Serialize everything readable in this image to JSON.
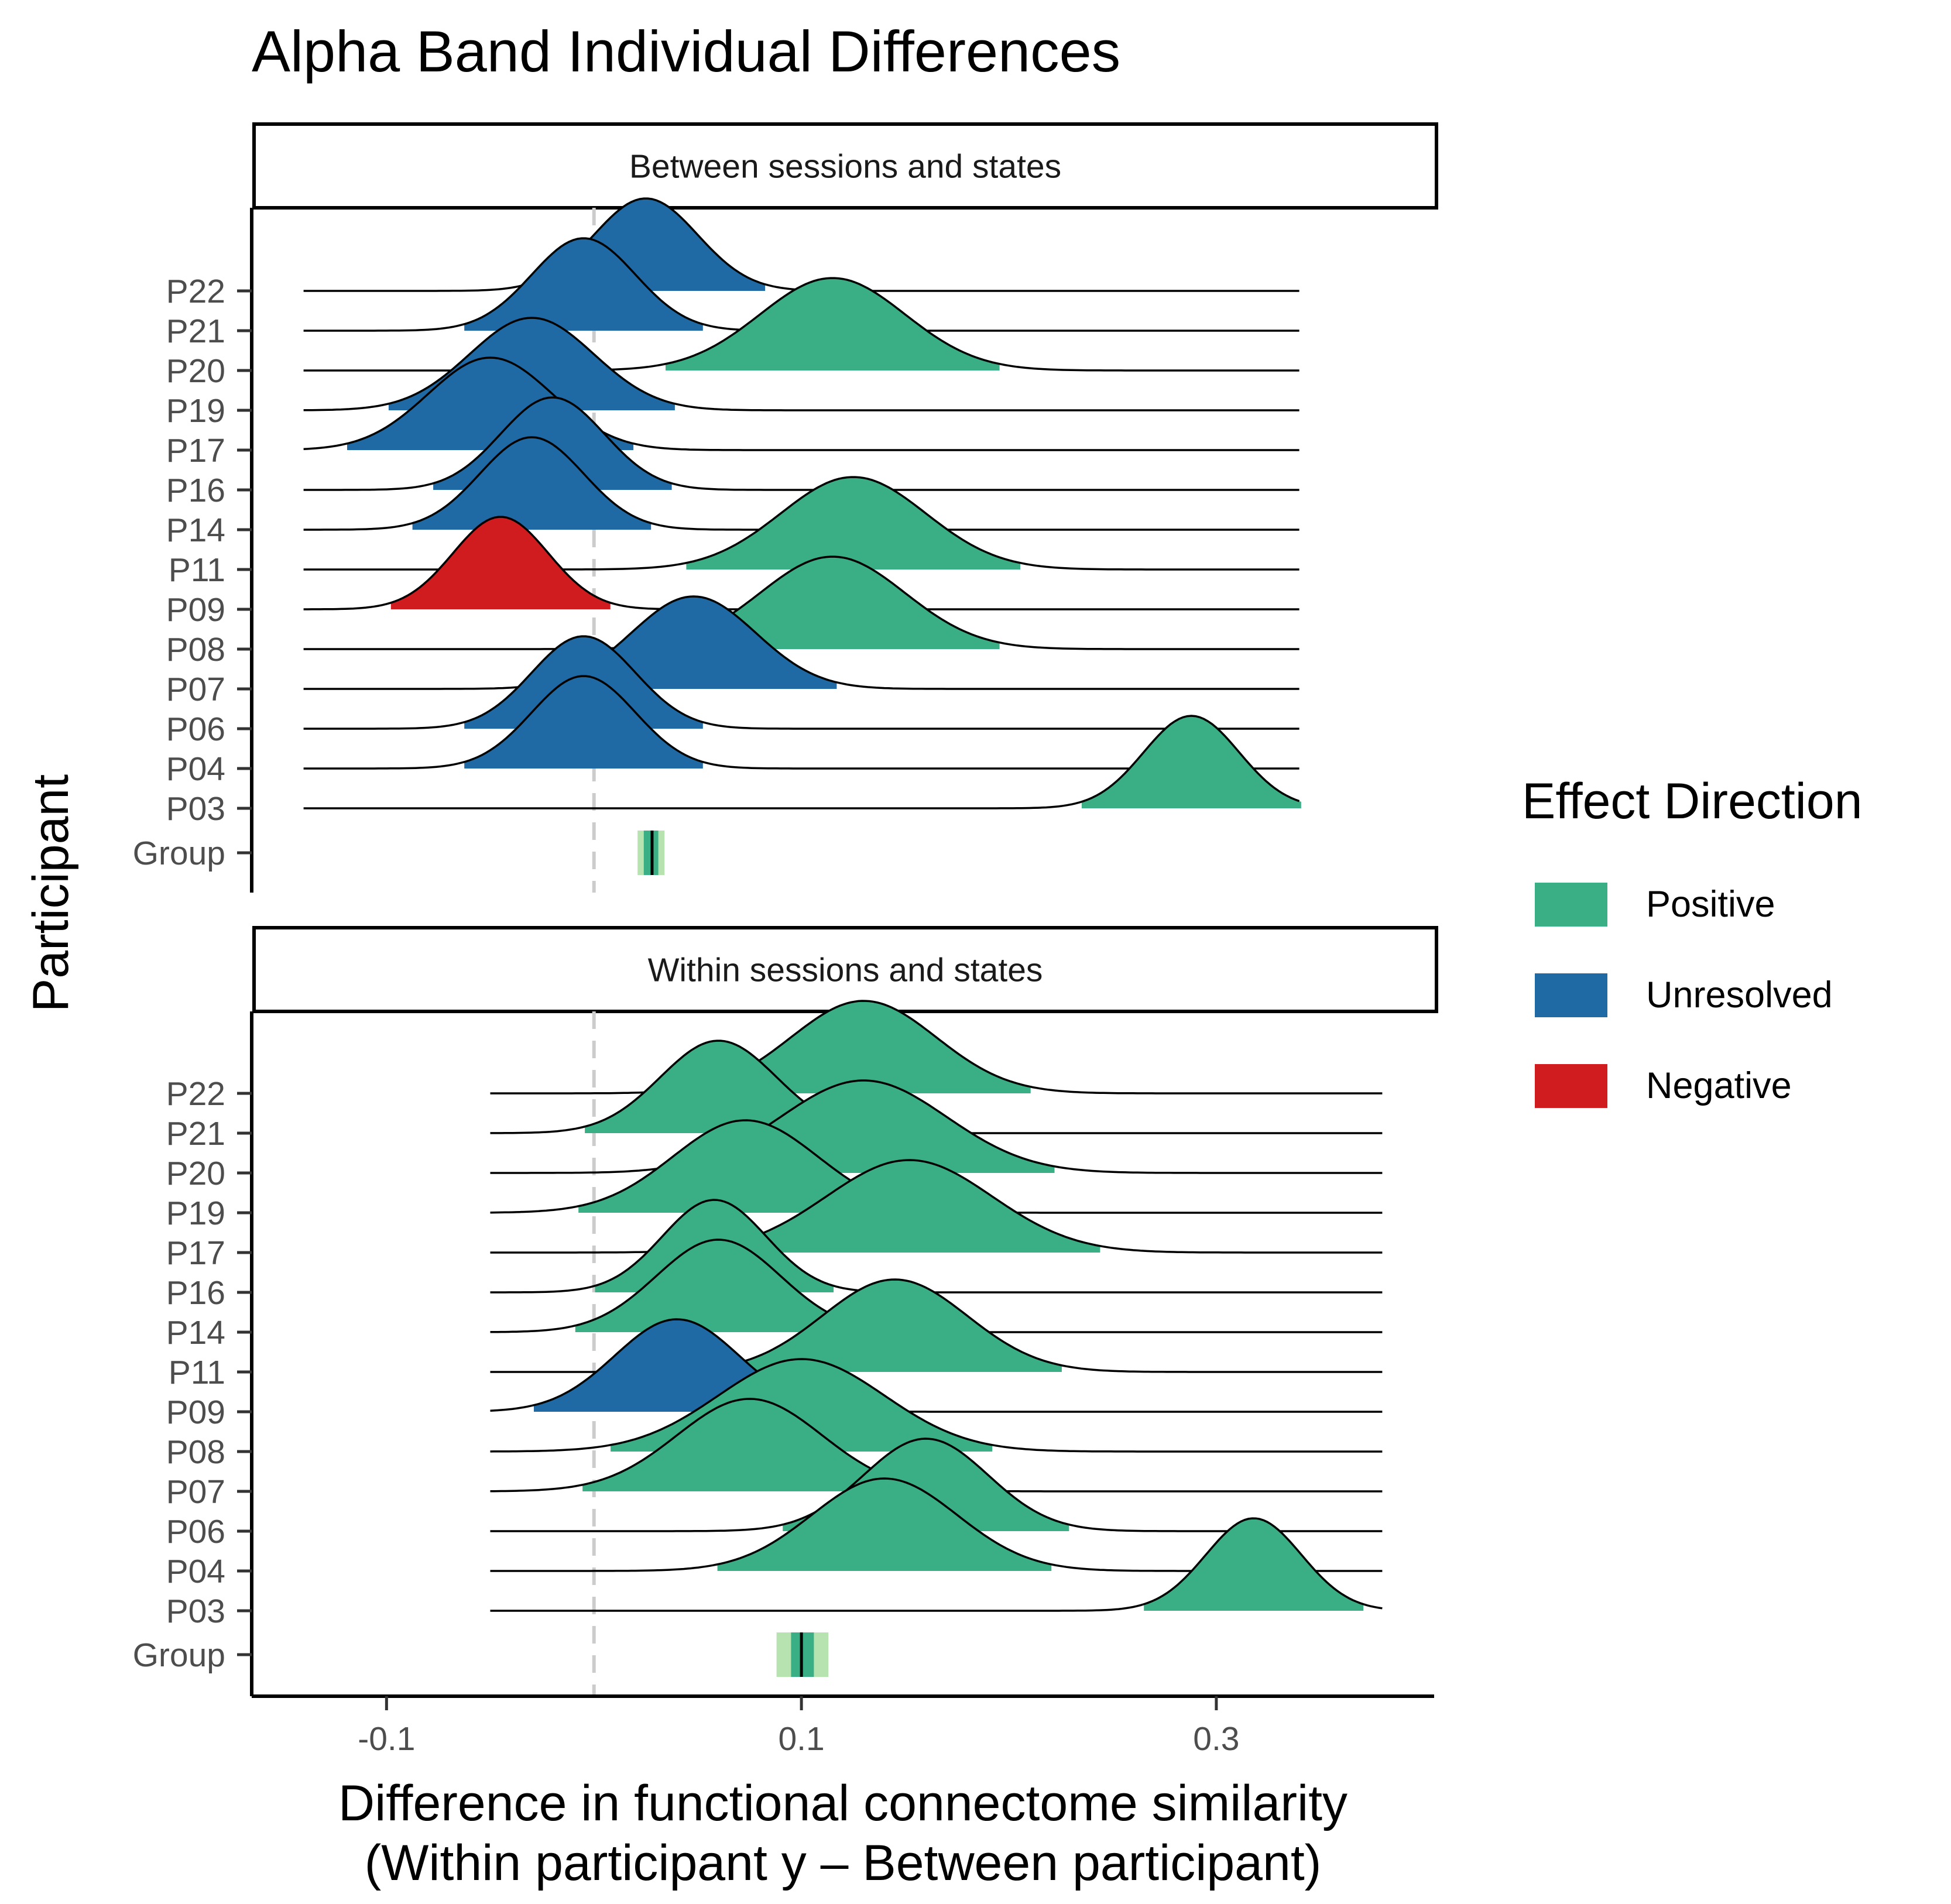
{
  "chart_data": {
    "type": "ridgeline",
    "title": "Alpha Band Individual Differences",
    "xlabel_line1": "Difference in functional connectome similarity",
    "xlabel_line2": "(Within participant y – Between participant)",
    "ylabel": "Participant",
    "x_ticks": [
      -0.1,
      0.1,
      0.3
    ],
    "x_tick_labels": [
      "-0.1",
      "0.1",
      "0.3"
    ],
    "xlim": [
      -0.165,
      0.405
    ],
    "reference_line": 0,
    "participants": [
      "P03",
      "P04",
      "P06",
      "P07",
      "P08",
      "P09",
      "P11",
      "P14",
      "P16",
      "P17",
      "P19",
      "P20",
      "P21",
      "P22"
    ],
    "group_label": "Group",
    "legend": {
      "title": "Effect Direction",
      "items": [
        {
          "key": "Positive",
          "label": "Positive",
          "color": "#3aaf85"
        },
        {
          "key": "Unresolved",
          "label": "Unresolved",
          "color": "#1f6aa5"
        },
        {
          "key": "Negative",
          "label": "Negative",
          "color": "#d01c1f"
        }
      ]
    },
    "group_interval_colors": {
      "outer": "#b7e3b1",
      "inner": "#3aaf85",
      "median": "#000000"
    },
    "panels": [
      {
        "strip": "Between sessions and states",
        "x_range": [
          -0.14,
          0.34
        ],
        "densities": [
          {
            "participant": "P03",
            "mean": 0.288,
            "sd": 0.023,
            "direction": "Positive"
          },
          {
            "participant": "P04",
            "mean": -0.005,
            "sd": 0.025,
            "direction": "Unresolved"
          },
          {
            "participant": "P06",
            "mean": -0.005,
            "sd": 0.025,
            "direction": "Unresolved"
          },
          {
            "participant": "P07",
            "mean": 0.048,
            "sd": 0.03,
            "direction": "Unresolved"
          },
          {
            "participant": "P08",
            "mean": 0.115,
            "sd": 0.035,
            "direction": "Positive"
          },
          {
            "participant": "P09",
            "mean": -0.045,
            "sd": 0.023,
            "direction": "Negative"
          },
          {
            "participant": "P11",
            "mean": 0.125,
            "sd": 0.035,
            "direction": "Positive"
          },
          {
            "participant": "P14",
            "mean": -0.03,
            "sd": 0.025,
            "direction": "Unresolved"
          },
          {
            "participant": "P16",
            "mean": -0.02,
            "sd": 0.025,
            "direction": "Unresolved"
          },
          {
            "participant": "P17",
            "mean": -0.05,
            "sd": 0.03,
            "direction": "Unresolved"
          },
          {
            "participant": "P19",
            "mean": -0.03,
            "sd": 0.03,
            "direction": "Unresolved"
          },
          {
            "participant": "P20",
            "mean": 0.115,
            "sd": 0.035,
            "direction": "Positive"
          },
          {
            "participant": "P21",
            "mean": -0.005,
            "sd": 0.025,
            "direction": "Unresolved"
          },
          {
            "participant": "P22",
            "mean": 0.025,
            "sd": 0.025,
            "direction": "Unresolved"
          }
        ],
        "group": {
          "outer": [
            0.021,
            0.034
          ],
          "inner": [
            0.024,
            0.031
          ],
          "median": 0.028
        }
      },
      {
        "strip": "Within sessions and states",
        "x_range": [
          -0.05,
          0.38
        ],
        "densities": [
          {
            "participant": "P03",
            "mean": 0.318,
            "sd": 0.023,
            "direction": "Positive"
          },
          {
            "participant": "P04",
            "mean": 0.14,
            "sd": 0.035,
            "direction": "Positive"
          },
          {
            "participant": "P06",
            "mean": 0.16,
            "sd": 0.03,
            "direction": "Positive"
          },
          {
            "participant": "P07",
            "mean": 0.075,
            "sd": 0.035,
            "direction": "Positive"
          },
          {
            "participant": "P08",
            "mean": 0.1,
            "sd": 0.04,
            "direction": "Positive"
          },
          {
            "participant": "P09",
            "mean": 0.04,
            "sd": 0.03,
            "direction": "Unresolved"
          },
          {
            "participant": "P11",
            "mean": 0.145,
            "sd": 0.035,
            "direction": "Positive"
          },
          {
            "participant": "P14",
            "mean": 0.06,
            "sd": 0.03,
            "direction": "Positive"
          },
          {
            "participant": "P16",
            "mean": 0.058,
            "sd": 0.025,
            "direction": "Positive"
          },
          {
            "participant": "P17",
            "mean": 0.152,
            "sd": 0.04,
            "direction": "Positive"
          },
          {
            "participant": "P19",
            "mean": 0.073,
            "sd": 0.035,
            "direction": "Positive"
          },
          {
            "participant": "P20",
            "mean": 0.13,
            "sd": 0.04,
            "direction": "Positive"
          },
          {
            "participant": "P21",
            "mean": 0.06,
            "sd": 0.028,
            "direction": "Positive"
          },
          {
            "participant": "P22",
            "mean": 0.13,
            "sd": 0.035,
            "direction": "Positive"
          }
        ],
        "group": {
          "outer": [
            0.088,
            0.113
          ],
          "inner": [
            0.095,
            0.106
          ],
          "median": 0.1
        }
      }
    ]
  }
}
